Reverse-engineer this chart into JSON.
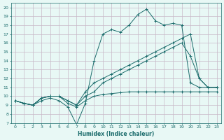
{
  "xlabel": "Humidex (Indice chaleur)",
  "bg_color": "#e8f8f5",
  "line_color": "#1a6b6b",
  "grid_color": "#c8b8c8",
  "xlim": [
    -0.5,
    23.5
  ],
  "ylim": [
    7,
    20.5
  ],
  "xticks": [
    0,
    1,
    2,
    3,
    4,
    5,
    6,
    7,
    8,
    9,
    10,
    11,
    12,
    13,
    14,
    15,
    16,
    17,
    18,
    19,
    20,
    21,
    22,
    23
  ],
  "yticks": [
    7,
    8,
    9,
    10,
    11,
    12,
    13,
    14,
    15,
    16,
    17,
    18,
    19,
    20
  ],
  "series": [
    {
      "x": [
        0,
        1,
        2,
        3,
        4,
        5,
        6,
        7,
        8,
        9,
        10,
        11,
        12,
        13,
        14,
        15,
        16,
        17,
        18,
        19,
        20,
        21,
        22,
        23
      ],
      "y": [
        9.5,
        9.2,
        9.0,
        9.5,
        9.8,
        9.5,
        8.8,
        6.8,
        9.2,
        14.0,
        17.0,
        17.5,
        17.2,
        18.0,
        19.2,
        19.8,
        18.5,
        18.0,
        18.2,
        18.0,
        11.5,
        11.0,
        11.0,
        11.0
      ]
    },
    {
      "x": [
        0,
        1,
        2,
        3,
        4,
        5,
        6,
        7,
        8,
        9,
        10,
        11,
        12,
        13,
        14,
        15,
        16,
        17,
        18,
        19,
        20,
        21,
        22,
        23
      ],
      "y": [
        9.5,
        9.2,
        9.0,
        9.8,
        10.0,
        10.0,
        9.5,
        9.0,
        10.5,
        11.5,
        12.0,
        12.5,
        13.0,
        13.5,
        14.0,
        14.5,
        15.0,
        15.5,
        16.0,
        16.5,
        17.0,
        12.0,
        11.0,
        11.0
      ]
    },
    {
      "x": [
        0,
        1,
        2,
        3,
        4,
        5,
        6,
        7,
        8,
        9,
        10,
        11,
        12,
        13,
        14,
        15,
        16,
        17,
        18,
        19,
        20,
        21,
        22,
        23
      ],
      "y": [
        9.5,
        9.2,
        9.0,
        9.8,
        10.0,
        10.0,
        9.2,
        8.8,
        9.5,
        10.0,
        10.2,
        10.3,
        10.4,
        10.5,
        10.5,
        10.5,
        10.5,
        10.5,
        10.5,
        10.5,
        10.5,
        10.5,
        10.5,
        10.5
      ]
    },
    {
      "x": [
        0,
        1,
        2,
        3,
        4,
        5,
        6,
        7,
        8,
        9,
        10,
        11,
        12,
        13,
        14,
        15,
        16,
        17,
        18,
        19,
        20,
        21,
        22,
        23
      ],
      "y": [
        9.5,
        9.2,
        9.0,
        9.8,
        10.0,
        10.0,
        9.5,
        9.0,
        10.0,
        10.5,
        11.5,
        12.0,
        12.5,
        13.0,
        13.5,
        14.0,
        14.5,
        15.0,
        15.5,
        16.0,
        14.5,
        12.0,
        11.0,
        11.0
      ]
    }
  ]
}
